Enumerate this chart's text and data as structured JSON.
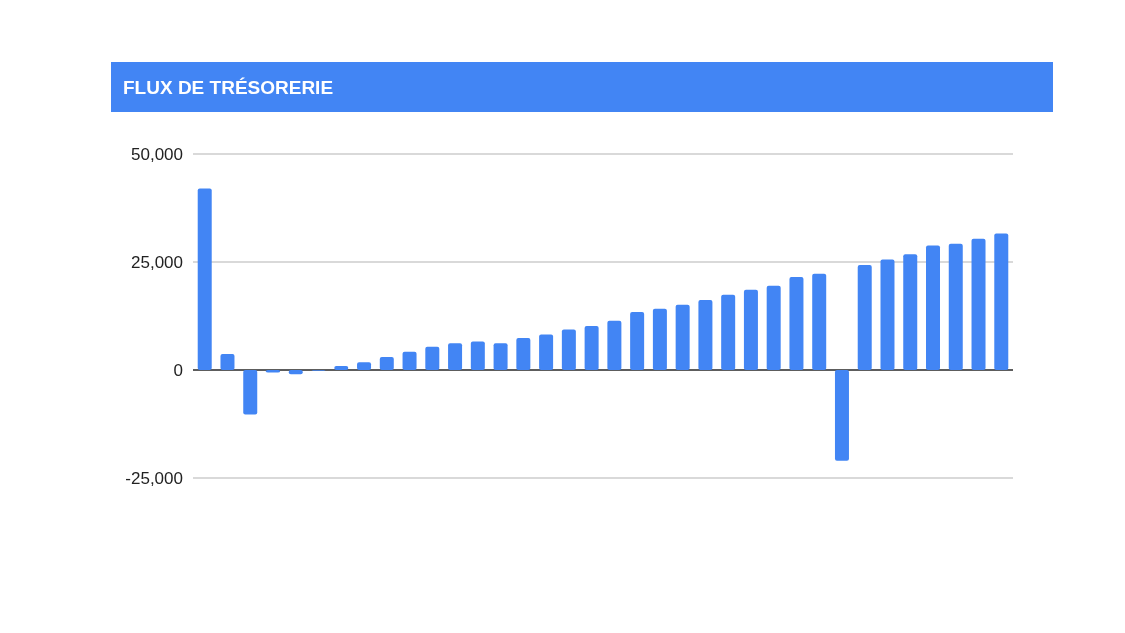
{
  "chart_data": {
    "type": "bar",
    "title": "FLUX DE TRÉSORERIE",
    "categories": [
      null,
      null,
      null,
      null,
      null,
      null,
      null,
      null,
      null,
      null,
      null,
      null,
      null,
      null,
      null,
      null,
      null,
      null,
      null,
      null,
      null,
      null,
      null,
      null,
      null,
      null,
      null,
      null,
      null,
      null,
      null,
      null,
      null,
      null,
      null,
      null
    ],
    "values": [
      42000,
      3700,
      -10300,
      -600,
      -1000,
      -200,
      900,
      1800,
      3000,
      4200,
      5400,
      6200,
      6600,
      6200,
      7400,
      8200,
      9400,
      10200,
      11400,
      13400,
      14200,
      15100,
      16200,
      17400,
      18600,
      19500,
      21500,
      22300,
      -21000,
      24300,
      25600,
      26800,
      28800,
      29200,
      30400,
      31600
    ],
    "color": "#4285f4",
    "ylim": [
      -25000,
      50000
    ],
    "yticks": [
      {
        "value": -25000,
        "label": "-25,000"
      },
      {
        "value": 0,
        "label": "0"
      },
      {
        "value": 25000,
        "label": "25,000"
      },
      {
        "value": 50000,
        "label": "50,000"
      }
    ],
    "grid": true
  }
}
